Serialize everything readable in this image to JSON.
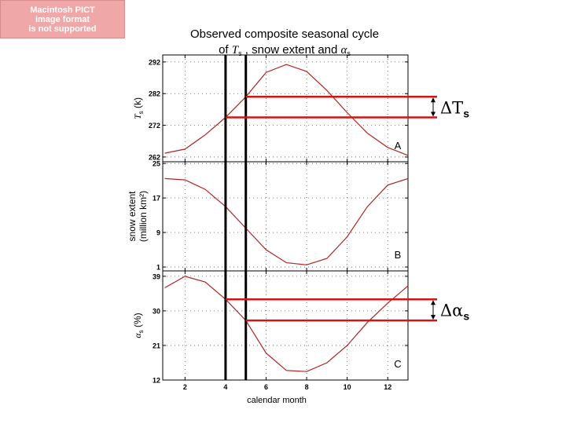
{
  "placeholder_badge": {
    "lines": [
      "Macintosh PICT",
      "image format",
      "is not supported"
    ]
  },
  "figure": {
    "title_line1": "Observed composite seasonal cycle",
    "title_line2_parts": [
      "of ",
      "T",
      "s",
      " , snow extent and ",
      "α",
      "s"
    ],
    "xlabel": "calendar month"
  },
  "colors": {
    "curve": "#b22222",
    "marker": "#d21414",
    "vline": "#000000",
    "axis": "#000000"
  },
  "annotations": {
    "delta_ts": "ΔTs",
    "delta_as": "Δαs"
  },
  "chart_data": [
    {
      "type": "line",
      "panel_label": "A",
      "ylabel_parts": [
        "T",
        "s",
        " (k)"
      ],
      "x": [
        1,
        2,
        3,
        4,
        5,
        6,
        7,
        8,
        9,
        10,
        11,
        12,
        13
      ],
      "y": [
        263.2,
        264.5,
        269,
        274.5,
        281,
        288.7,
        291.2,
        289,
        283,
        276,
        269.5,
        265,
        262.5
      ],
      "xlim": [
        0.9,
        13
      ],
      "ylim": [
        260.5,
        294.2
      ],
      "yticks": [
        262,
        272,
        282,
        292
      ],
      "xticks": [
        2,
        4,
        6,
        8,
        10,
        12
      ]
    },
    {
      "type": "line",
      "panel_label": "B",
      "ylabel_lines": [
        "snow extent",
        "(million km²)"
      ],
      "x": [
        1,
        2,
        3,
        4,
        5,
        6,
        7,
        8,
        9,
        10,
        11,
        12,
        13
      ],
      "y": [
        21.5,
        21.2,
        19,
        15,
        10,
        5,
        2,
        1.5,
        3,
        8,
        15,
        20,
        21.5
      ],
      "xlim": [
        0.9,
        13
      ],
      "ylim": [
        0.1,
        25.4
      ],
      "yticks": [
        1,
        9,
        17,
        25
      ],
      "xticks": [
        2,
        4,
        6,
        8,
        10,
        12
      ]
    },
    {
      "type": "line",
      "panel_label": "C",
      "ylabel_parts": [
        "α",
        "s",
        " (%)"
      ],
      "x": [
        1,
        2,
        3,
        4,
        5,
        6,
        7,
        8,
        9,
        10,
        11,
        12,
        13
      ],
      "y": [
        36,
        39,
        37.5,
        33,
        27.5,
        19,
        14.5,
        14.2,
        16.5,
        21,
        27,
        32,
        36.5
      ],
      "xlim": [
        0.9,
        13
      ],
      "ylim": [
        12,
        40.4
      ],
      "yticks": [
        12,
        21,
        30,
        39
      ],
      "xticks": [
        2,
        4,
        6,
        8,
        10,
        12
      ]
    }
  ]
}
